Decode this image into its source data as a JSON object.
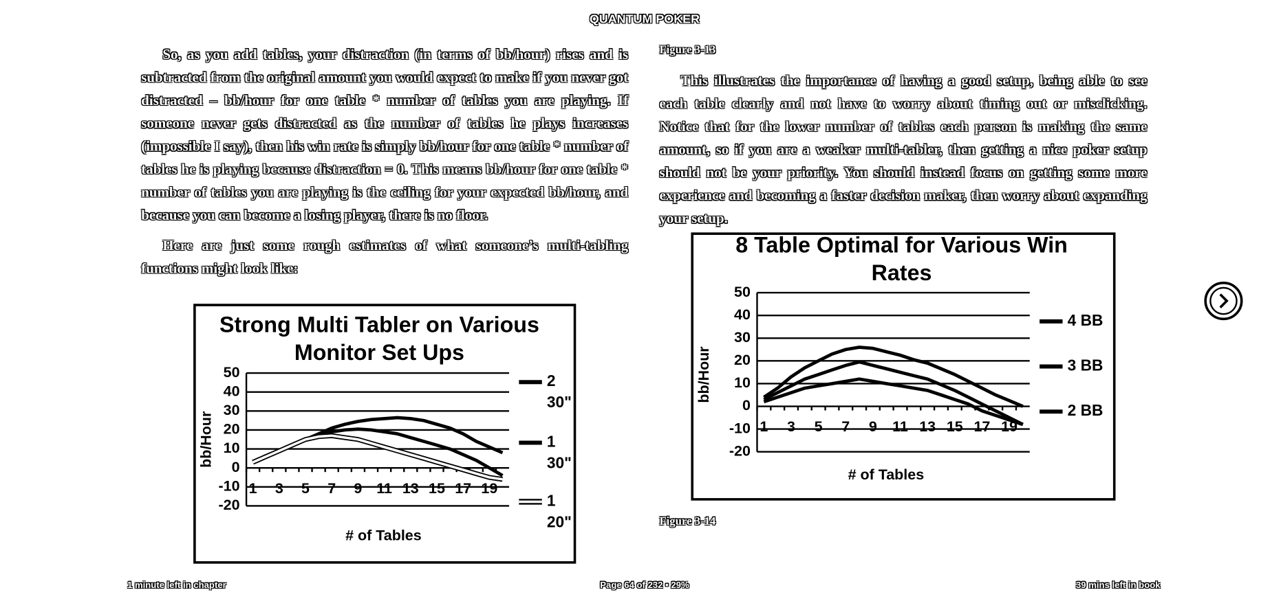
{
  "header": {
    "title": "QUANTUM POKER"
  },
  "left": {
    "paragraphs": [
      "So, as you add tables, your distraction (in terms of bb/hour) rises and is subtracted from the original amount you would expect to make if you never got distracted – bb/hour for one table * number of tables you are playing. If someone never gets distracted as the number of tables he plays increases (impossible I say), then his win rate is simply bb/hour for one table * number of tables he is playing because distraction = 0. This means bb/hour for one table * number of tables you are playing is the ceiling for your expected bb/hour, and because you can become a losing player, there is no floor.",
      "Here are just some rough estimates of what someone’s multi-tabling functions might look like:"
    ]
  },
  "right": {
    "caption_top": "Figure 3-13",
    "paragraph": "This illustrates the importance of having a good setup, being able to see each table clearly and not have to worry about timing out or misclicking. Notice that for the lower number of tables each person is making the same amount, so if you are a weaker multi-tabler, then getting a nice poker setup should not be your priority. You should instead focus on getting some more experience and becoming a faster decision maker, then worry about expanding your setup.",
    "caption_bottom": "Figure 3-14"
  },
  "chart_data": [
    {
      "type": "line",
      "title": "Strong Multi Tabler on Various Monitor Set Ups",
      "x_label": "# of Tables",
      "y_label": "bb/Hour",
      "categories": [
        "1",
        null,
        "3",
        null,
        "5",
        null,
        "7",
        null,
        "9",
        null,
        "11",
        null,
        "13",
        null,
        "15",
        null,
        "17",
        null,
        "19",
        null
      ],
      "ylim": [
        -20,
        50
      ],
      "yticks": [
        -20,
        -10,
        0,
        10,
        20,
        30,
        40,
        50
      ],
      "grid": true,
      "series": [
        {
          "name": "2 30\"",
          "color": "#000000",
          "values": [
            3,
            6,
            9,
            12,
            15,
            18,
            21,
            23,
            24.5,
            25.5,
            26,
            26.5,
            26,
            25,
            23,
            21,
            18,
            14,
            11,
            8
          ]
        },
        {
          "name": "1 30\"",
          "color": "#000000",
          "values": [
            3,
            6,
            9,
            12,
            15,
            17,
            19,
            20,
            20.5,
            20,
            19,
            18,
            16,
            14,
            12,
            10,
            7,
            4,
            0,
            -4
          ]
        },
        {
          "name": "1 20\"",
          "color": "#ffffff",
          "values": [
            3,
            6,
            9,
            12,
            15,
            16.5,
            17,
            16,
            15,
            13,
            11,
            9,
            7,
            5,
            3,
            1,
            -1,
            -3,
            -5,
            -6
          ]
        }
      ]
    },
    {
      "type": "line",
      "title": "8 Table Optimal for Various Win Rates",
      "x_label": "# of Tables",
      "y_label": "bb/Hour",
      "categories": [
        "1",
        null,
        "3",
        null,
        "5",
        null,
        "7",
        null,
        "9",
        null,
        "11",
        null,
        "13",
        null,
        "15",
        null,
        "17",
        null,
        "19",
        null
      ],
      "ylim": [
        -20,
        50
      ],
      "yticks": [
        -20,
        -10,
        0,
        10,
        20,
        30,
        40,
        50
      ],
      "grid": true,
      "series": [
        {
          "name": "4 BB",
          "color": "#000000",
          "values": [
            4,
            8,
            13,
            17,
            20,
            23,
            25,
            26,
            25.5,
            24,
            22.5,
            20.5,
            19,
            16.5,
            14,
            11,
            8,
            5,
            2.5,
            0
          ]
        },
        {
          "name": "3 BB",
          "color": "#000000",
          "values": [
            3,
            6,
            9,
            12,
            14,
            16,
            18,
            19.5,
            18,
            16.5,
            15,
            13.5,
            12,
            9.5,
            7,
            4,
            1,
            -2,
            -5,
            -8
          ]
        },
        {
          "name": "2 BB",
          "color": "#000000",
          "values": [
            2,
            4,
            6,
            8,
            9,
            10,
            11,
            12,
            11,
            10,
            9,
            8,
            7,
            5,
            3,
            1,
            -2,
            -4,
            -6,
            -8
          ]
        }
      ]
    }
  ],
  "footer": {
    "left": "1 minute left in chapter",
    "center": "Page 64 of 232 • 29%",
    "right": "39 mins left in book"
  }
}
